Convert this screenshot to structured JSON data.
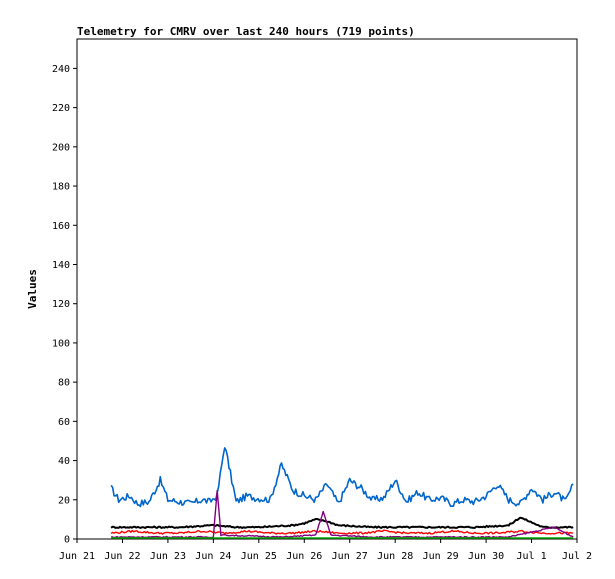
{
  "chart_data": {
    "type": "line",
    "title": "Telemetry for CMRV over last 240 hours (719 points)",
    "xlabel": "",
    "ylabel": "Values",
    "ylim": [
      0,
      255
    ],
    "xlim": [
      "Jun 21",
      "Jul 2"
    ],
    "x_ticks": [
      "Jun 21",
      "Jun 22",
      "Jun 23",
      "Jun 24",
      "Jun 25",
      "Jun 26",
      "Jun 27",
      "Jun 28",
      "Jun 29",
      "Jun 30",
      "Jul 1",
      "Jul 2"
    ],
    "y_ticks": [
      0,
      20,
      40,
      60,
      80,
      100,
      120,
      140,
      160,
      180,
      200,
      220,
      240
    ],
    "grid": false,
    "legend": "none",
    "series": [
      {
        "color": "#0066cc",
        "x": [
          "Jun 21 18:00",
          "Jun 21 22:00",
          "Jun 22 04:00",
          "Jun 22 08:00",
          "Jun 22 14:00",
          "Jun 22 20:00",
          "Jun 23 00:00",
          "Jun 23 06:00",
          "Jun 23 12:00",
          "Jun 23 18:00",
          "Jun 23 22:00",
          "Jun 24 02:00",
          "Jun 24 06:00",
          "Jun 24 12:00",
          "Jun 24 18:00",
          "Jun 24 22:00",
          "Jun 25 06:00",
          "Jun 25 12:00",
          "Jun 25 18:00",
          "Jun 26 00:00",
          "Jun 26 06:00",
          "Jun 26 12:00",
          "Jun 26 18:00",
          "Jun 27 00:00",
          "Jun 27 06:00",
          "Jun 27 12:00",
          "Jun 27 18:00",
          "Jun 28 00:00",
          "Jun 28 06:00",
          "Jun 28 12:00",
          "Jun 28 18:00",
          "Jun 29 00:00",
          "Jun 29 06:00",
          "Jun 29 12:00",
          "Jun 29 18:00",
          "Jun 30 00:00",
          "Jun 30 06:00",
          "Jun 30 12:00",
          "Jun 30 18:00",
          "Jul 1 00:00",
          "Jul 1 06:00",
          "Jul 1 12:00",
          "Jul 1 18:00",
          "Jul 1 22:00"
        ],
        "y": [
          26,
          20,
          22,
          18,
          19,
          30,
          20,
          19,
          18,
          20,
          19,
          22,
          48,
          19,
          22,
          21,
          20,
          38,
          25,
          22,
          20,
          28,
          18,
          30,
          26,
          20,
          21,
          30,
          19,
          24,
          20,
          21,
          18,
          20,
          19,
          22,
          28,
          20,
          18,
          26,
          20,
          24,
          19,
          28
        ]
      },
      {
        "color": "#000000",
        "x": [
          "Jun 21 18:00",
          "Jun 22 12:00",
          "Jun 23 06:00",
          "Jun 24 00:00",
          "Jun 24 12:00",
          "Jun 25 00:00",
          "Jun 25 18:00",
          "Jun 26 00:00",
          "Jun 26 06:00",
          "Jun 26 12:00",
          "Jun 26 18:00",
          "Jun 27 12:00",
          "Jun 28 06:00",
          "Jun 29 00:00",
          "Jun 29 18:00",
          "Jun 30 12:00",
          "Jun 30 18:00",
          "Jul 1 06:00",
          "Jul 1 22:00"
        ],
        "y": [
          6,
          6,
          6,
          7,
          6,
          6,
          7,
          8,
          10,
          9,
          7,
          6,
          6,
          6,
          6,
          7,
          11,
          6,
          6
        ]
      },
      {
        "color": "#ff0000",
        "x": [
          "Jun 21 18:00",
          "Jun 22 06:00",
          "Jun 22 18:00",
          "Jun 23 06:00",
          "Jun 23 18:00",
          "Jun 24 06:00",
          "Jun 24 18:00",
          "Jun 25 06:00",
          "Jun 25 18:00",
          "Jun 26 06:00",
          "Jun 26 18:00",
          "Jun 27 06:00",
          "Jun 27 18:00",
          "Jun 28 06:00",
          "Jun 28 18:00",
          "Jun 29 06:00",
          "Jun 29 18:00",
          "Jun 30 06:00",
          "Jun 30 18:00",
          "Jul 1 06:00",
          "Jul 1 22:00"
        ],
        "y": [
          3,
          4,
          3,
          3,
          4,
          3,
          4,
          3,
          3,
          4,
          3,
          3,
          4,
          3,
          3,
          4,
          3,
          3,
          4,
          3,
          3
        ]
      },
      {
        "color": "#800080",
        "x": [
          "Jun 21 18:00",
          "Jun 23 12:00",
          "Jun 24 00:00",
          "Jun 24 02:00",
          "Jun 24 04:00",
          "Jun 25 12:00",
          "Jun 26 06:00",
          "Jun 26 10:00",
          "Jun 26 14:00",
          "Jun 27 12:00",
          "Jun 29 12:00",
          "Jun 30 12:00",
          "Jul 1 12:00",
          "Jul 1 22:00"
        ],
        "y": [
          1,
          1,
          1,
          25,
          2,
          1,
          2,
          14,
          2,
          1,
          1,
          1,
          6,
          1
        ]
      },
      {
        "color": "#00aa00",
        "x": [
          "Jun 21 18:00",
          "Jul 1 22:00"
        ],
        "y": [
          0.5,
          0.5
        ]
      }
    ]
  }
}
